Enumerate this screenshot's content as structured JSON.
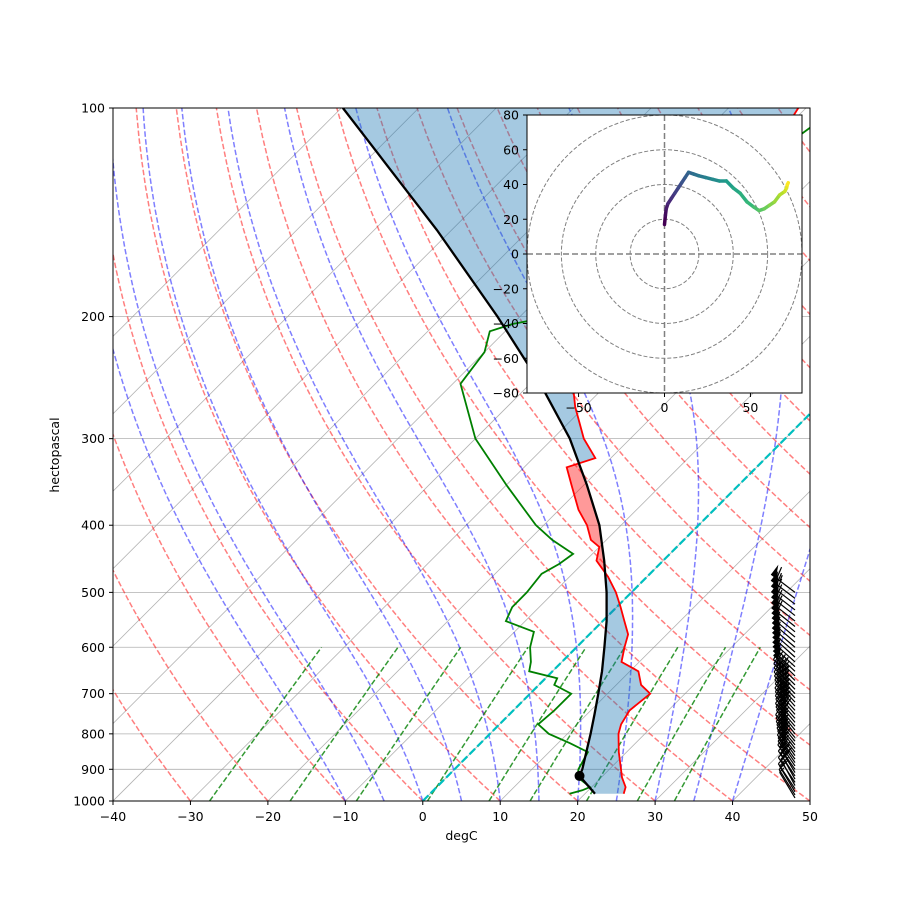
{
  "chart_data": [
    {
      "type": "line",
      "subtype": "skew-t log-p diagram",
      "title": "",
      "xlabel": "degC",
      "ylabel": "hectopascal",
      "xlim": [
        -40,
        50
      ],
      "ylim": [
        1000,
        100
      ],
      "y_scale": "log",
      "x_ticks": [
        -40,
        -30,
        -20,
        -10,
        0,
        10,
        20,
        30,
        40,
        50
      ],
      "x_tick_labels": [
        "−40",
        "−30",
        "−20",
        "−10",
        "0",
        "10",
        "20",
        "30",
        "40",
        "50"
      ],
      "y_ticks": [
        1000,
        900,
        800,
        700,
        600,
        500,
        400,
        300,
        200,
        100
      ],
      "y_tick_labels": [
        "1000",
        "900",
        "800",
        "700",
        "600",
        "500",
        "400",
        "300",
        "200",
        "100"
      ],
      "grid": true,
      "colors": {
        "temperature": "#ff0000",
        "dewpoint": "#008000",
        "parcel": "#000000",
        "lcl": "#000000",
        "cape_fill": "#ff0000",
        "cin_fill": "#1f77b4",
        "dry_adiabats": "#ff0000",
        "moist_adiabats": "#0000ff",
        "mixing_ratio": "#008000",
        "zero_isotherm": "#00bfbf",
        "isotherms": "#999999"
      },
      "series": [
        {
          "pressure": [
            976,
            955,
            925,
            900,
            850,
            800,
            775,
            740,
            700,
            680,
            650,
            630,
            600,
            575,
            550,
            525,
            500,
            475,
            450,
            430,
            420,
            400,
            380,
            350,
            330,
            320,
            300,
            270,
            250,
            230,
            220,
            210,
            205,
            190,
            170,
            150,
            140,
            132,
            115,
            100
          ],
          "values": [
            25,
            24.4,
            22.7,
            21.5,
            19.0,
            16.6,
            15.7,
            15.0,
            15.5,
            13.2,
            11.1,
            7.7,
            6.2,
            5.0,
            2.8,
            0.5,
            -2.0,
            -5.0,
            -8.6,
            -10.0,
            -12.0,
            -14.4,
            -17.5,
            -21.6,
            -24.5,
            -22.0,
            -26.0,
            -31.2,
            -34.5,
            -38.4,
            -39.0,
            -38.0,
            -35.0,
            -35.5,
            -37.5,
            -40.0,
            -43.0,
            -41.0,
            -39.0,
            -41.0
          ]
        },
        {
          "pressure": [
            976,
            965,
            955,
            925,
            900,
            850,
            825,
            800,
            775,
            740,
            700,
            680,
            665,
            650,
            630,
            600,
            570,
            550,
            525,
            500,
            470,
            455,
            440,
            420,
            400,
            350,
            300,
            250,
            225,
            210,
            205,
            200,
            170,
            150,
            140,
            132,
            115,
            100
          ],
          "values": [
            18,
            19.2,
            19.8,
            17.0,
            16.0,
            15.0,
            11.5,
            7.6,
            5.0,
            5.3,
            5.3,
            2.0,
            1.5,
            -3.0,
            -4.0,
            -6.0,
            -7.5,
            -12.5,
            -13.5,
            -13.5,
            -14.0,
            -13.0,
            -12.5,
            -17.0,
            -21.0,
            -30.0,
            -40.0,
            -49.0,
            -50.0,
            -52.0,
            -50.0,
            -46.0,
            -43.0,
            -43.0,
            -42.0,
            -40.0,
            -38.0,
            -36.0
          ]
        },
        {
          "pressure": [
            976,
            920,
            900,
            850,
            800,
            750,
            700,
            650,
            600,
            550,
            500,
            450,
            400,
            350,
            300,
            250,
            200,
            150,
            100
          ],
          "values": [
            21.3,
            17.0,
            16.5,
            14.8,
            13.0,
            11.0,
            8.8,
            6.4,
            3.6,
            0.5,
            -3.2,
            -7.6,
            -12.8,
            -19.6,
            -27.8,
            -38.7,
            -52.9,
            -71.9,
            -99.8
          ]
        }
      ],
      "lcl": {
        "pressure": 920,
        "temperature": 17.0
      },
      "wind_barbs": {
        "pressure": [
          990,
          980,
          970,
          960,
          950,
          940,
          930,
          920,
          910,
          900,
          890,
          880,
          870,
          860,
          850,
          840,
          830,
          820,
          810,
          800,
          790,
          780,
          770,
          760,
          750,
          740,
          730,
          720,
          710,
          700,
          690,
          680,
          670,
          660,
          650,
          640,
          630,
          620,
          610,
          600,
          590,
          580,
          570,
          560,
          550,
          540,
          530,
          520,
          510,
          500
        ],
        "u": [
          3,
          5,
          6,
          8,
          8,
          10,
          10,
          12,
          12,
          14,
          15,
          15,
          16,
          17,
          18,
          19,
          20,
          21,
          22,
          22,
          23,
          24,
          25,
          26,
          26,
          27,
          28,
          29,
          30,
          31,
          32,
          33,
          34,
          35,
          36,
          37,
          38,
          39,
          40,
          41,
          42,
          43,
          44,
          45,
          46,
          47,
          48,
          48,
          49,
          50
        ],
        "v": [
          -5,
          -8,
          -10,
          -12,
          -15,
          -15,
          -18,
          -18,
          -20,
          -20,
          -22,
          -22,
          -22,
          -24,
          -24,
          -25,
          -25,
          -26,
          -26,
          -28,
          -28,
          -28,
          -30,
          -30,
          -30,
          -30,
          -32,
          -32,
          -32,
          -32,
          -33,
          -33,
          -33,
          -34,
          -34,
          -34,
          -34,
          -35,
          -35,
          -35,
          -36,
          -36,
          -36,
          -36,
          -36,
          -37,
          -37,
          -37,
          -37,
          -38
        ]
      }
    },
    {
      "type": "line",
      "subtype": "hodograph",
      "title": "",
      "xlim": [
        -80,
        80
      ],
      "ylim": [
        -80,
        80
      ],
      "x_ticks": [
        -50,
        0,
        50
      ],
      "x_tick_labels": [
        "−50",
        "0",
        "50"
      ],
      "y_ticks": [
        -80,
        -60,
        -40,
        -20,
        0,
        20,
        40,
        60,
        80
      ],
      "y_tick_labels": [
        "−80",
        "−60",
        "−40",
        "−20",
        "0",
        "20",
        "40",
        "60",
        "80"
      ],
      "rings": [
        20,
        40,
        60,
        80
      ],
      "colormap": "viridis",
      "series": [
        {
          "u": [
            0,
            0.5,
            1,
            2,
            4,
            6,
            8,
            10,
            12,
            14,
            17,
            20,
            24,
            28,
            32,
            36,
            40,
            44,
            48,
            52,
            55,
            58,
            61,
            64,
            67,
            70,
            71,
            71.5,
            72
          ],
          "v": [
            17,
            22,
            26,
            29,
            32,
            35,
            38,
            41,
            44,
            47,
            46,
            45,
            44,
            43,
            42,
            42,
            38,
            35,
            30,
            27,
            25,
            26,
            28,
            30,
            34,
            36,
            38,
            40,
            41
          ]
        }
      ]
    }
  ]
}
